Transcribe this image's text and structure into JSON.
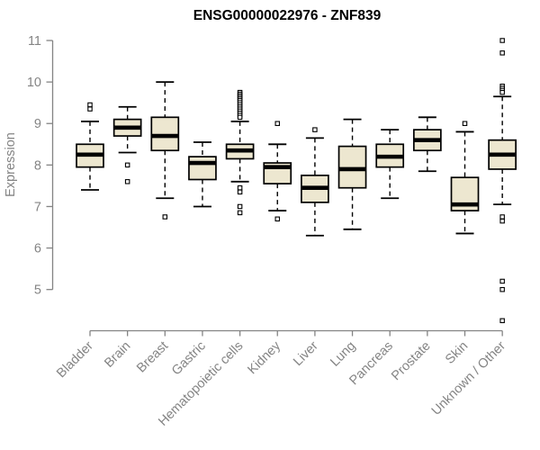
{
  "page": {
    "background": "#ffffff"
  },
  "chart_data": {
    "type": "boxplot",
    "title": "ENSG00000022976 - ZNF839",
    "xlabel": "",
    "ylabel": "Expression",
    "ylim": [
      5,
      11
    ],
    "yticks": [
      5,
      6,
      7,
      8,
      9,
      10,
      11
    ],
    "grid": false,
    "legend": "none",
    "axis_color": "#848484",
    "line_color": "#000000",
    "box_fill": "#EDE7D0",
    "outlier_fill": "#ffffff",
    "categories": [
      "Bladder",
      "Brain",
      "Breast",
      "Gastric",
      "Hematopoietic cells",
      "Kidney",
      "Liver",
      "Lung",
      "Pancreas",
      "Prostate",
      "Skin",
      "Unknown / Other"
    ],
    "boxes": [
      {
        "name": "Bladder",
        "whisker_low": 7.4,
        "q1": 7.95,
        "median": 8.25,
        "q3": 8.5,
        "whisker_high": 9.05,
        "outliers": [
          9.45,
          9.35
        ]
      },
      {
        "name": "Brain",
        "whisker_low": 8.3,
        "q1": 8.7,
        "median": 8.9,
        "q3": 9.1,
        "whisker_high": 9.4,
        "outliers": [
          8.0,
          7.6
        ]
      },
      {
        "name": "Breast",
        "whisker_low": 7.2,
        "q1": 8.35,
        "median": 8.7,
        "q3": 9.15,
        "whisker_high": 10.0,
        "outliers": [
          6.75
        ]
      },
      {
        "name": "Gastric",
        "whisker_low": 7.0,
        "q1": 7.65,
        "median": 8.05,
        "q3": 8.2,
        "whisker_high": 8.55,
        "outliers": []
      },
      {
        "name": "Hematopoietic cells",
        "whisker_low": 7.6,
        "q1": 8.15,
        "median": 8.35,
        "q3": 8.5,
        "whisker_high": 9.05,
        "outliers": [
          9.75,
          9.71,
          9.67,
          9.63,
          9.59,
          9.55,
          9.5,
          9.45,
          9.4,
          9.35,
          9.3,
          9.25,
          9.2,
          9.15,
          7.45,
          7.35,
          7.0,
          6.85
        ]
      },
      {
        "name": "Kidney",
        "whisker_low": 6.9,
        "q1": 7.55,
        "median": 7.95,
        "q3": 8.05,
        "whisker_high": 8.5,
        "outliers": [
          9.0,
          6.7
        ]
      },
      {
        "name": "Liver",
        "whisker_low": 6.3,
        "q1": 7.1,
        "median": 7.45,
        "q3": 7.75,
        "whisker_high": 8.65,
        "outliers": [
          8.85
        ]
      },
      {
        "name": "Lung",
        "whisker_low": 6.45,
        "q1": 7.45,
        "median": 7.9,
        "q3": 8.45,
        "whisker_high": 9.1,
        "outliers": []
      },
      {
        "name": "Pancreas",
        "whisker_low": 7.2,
        "q1": 7.95,
        "median": 8.2,
        "q3": 8.5,
        "whisker_high": 8.85,
        "outliers": []
      },
      {
        "name": "Prostate",
        "whisker_low": 7.85,
        "q1": 8.35,
        "median": 8.6,
        "q3": 8.85,
        "whisker_high": 9.15,
        "outliers": []
      },
      {
        "name": "Skin",
        "whisker_low": 6.35,
        "q1": 6.9,
        "median": 7.05,
        "q3": 7.7,
        "whisker_high": 8.8,
        "outliers": [
          9.0
        ]
      },
      {
        "name": "Unknown / Other",
        "whisker_low": 7.05,
        "q1": 7.9,
        "median": 8.25,
        "q3": 8.6,
        "whisker_high": 9.65,
        "outliers": [
          11.0,
          10.7,
          9.9,
          9.85,
          9.8,
          9.75,
          6.75,
          6.65,
          5.2,
          5.0,
          4.25
        ]
      }
    ]
  }
}
